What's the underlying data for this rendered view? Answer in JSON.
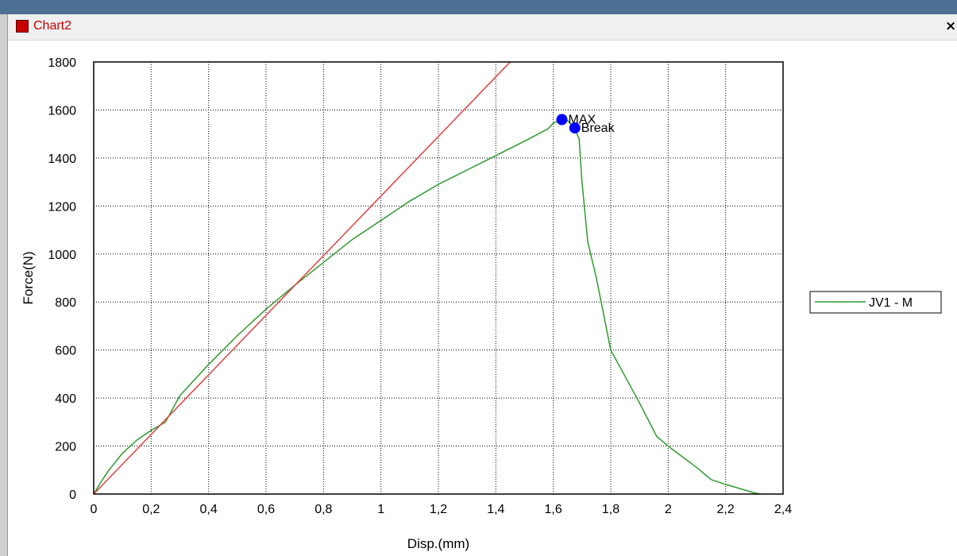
{
  "window": {
    "title": "Chart2",
    "close_label": "×"
  },
  "chart_data": {
    "type": "line",
    "xlabel": "Disp.(mm)",
    "ylabel": "Force(N)",
    "xlim": [
      0,
      2.4
    ],
    "ylim": [
      0,
      1800
    ],
    "grid": true,
    "legend_placement": "right",
    "x_ticks": [
      {
        "value": 0,
        "label": "0"
      },
      {
        "value": 0.2,
        "label": "0,2"
      },
      {
        "value": 0.4,
        "label": "0,4"
      },
      {
        "value": 0.6,
        "label": "0,6"
      },
      {
        "value": 0.8,
        "label": "0,8"
      },
      {
        "value": 1.0,
        "label": "1"
      },
      {
        "value": 1.2,
        "label": "1,2"
      },
      {
        "value": 1.4,
        "label": "1,4"
      },
      {
        "value": 1.6,
        "label": "1,6"
      },
      {
        "value": 1.8,
        "label": "1,8"
      },
      {
        "value": 2.0,
        "label": "2"
      },
      {
        "value": 2.2,
        "label": "2,2"
      },
      {
        "value": 2.4,
        "label": "2,4"
      }
    ],
    "y_ticks": [
      {
        "value": 0,
        "label": "0"
      },
      {
        "value": 200,
        "label": "200"
      },
      {
        "value": 400,
        "label": "400"
      },
      {
        "value": 600,
        "label": "600"
      },
      {
        "value": 800,
        "label": "800"
      },
      {
        "value": 1000,
        "label": "1000"
      },
      {
        "value": 1200,
        "label": "1200"
      },
      {
        "value": 1400,
        "label": "1400"
      },
      {
        "value": 1600,
        "label": "1600"
      },
      {
        "value": 1800,
        "label": "1800"
      }
    ],
    "series": [
      {
        "name": "JV1 - M",
        "color": "#2e9a2e",
        "x": [
          0,
          0.02,
          0.05,
          0.1,
          0.15,
          0.2,
          0.25,
          0.3,
          0.4,
          0.5,
          0.6,
          0.7,
          0.8,
          0.9,
          1.0,
          1.1,
          1.2,
          1.3,
          1.4,
          1.5,
          1.58,
          1.6,
          1.63,
          1.65,
          1.67,
          1.675,
          1.69,
          1.7,
          1.72,
          1.75,
          1.8,
          1.9,
          1.96,
          2.0,
          2.1,
          2.15,
          2.2,
          2.3,
          2.32
        ],
        "y": [
          0,
          40,
          95,
          170,
          225,
          265,
          300,
          410,
          540,
          660,
          770,
          870,
          965,
          1060,
          1140,
          1220,
          1290,
          1350,
          1410,
          1470,
          1520,
          1545,
          1560,
          1555,
          1530,
          1520,
          1480,
          1300,
          1050,
          900,
          600,
          380,
          240,
          200,
          110,
          60,
          40,
          5,
          0
        ]
      },
      {
        "color": "#e04040",
        "x": [
          0,
          1.45
        ],
        "y": [
          0,
          1800
        ]
      }
    ],
    "annotations": [
      {
        "label": "MAX",
        "x": 1.63,
        "y": 1560,
        "color": "#0000ff"
      },
      {
        "label": "Break",
        "x": 1.675,
        "y": 1525,
        "color": "#0000ff"
      }
    ]
  }
}
